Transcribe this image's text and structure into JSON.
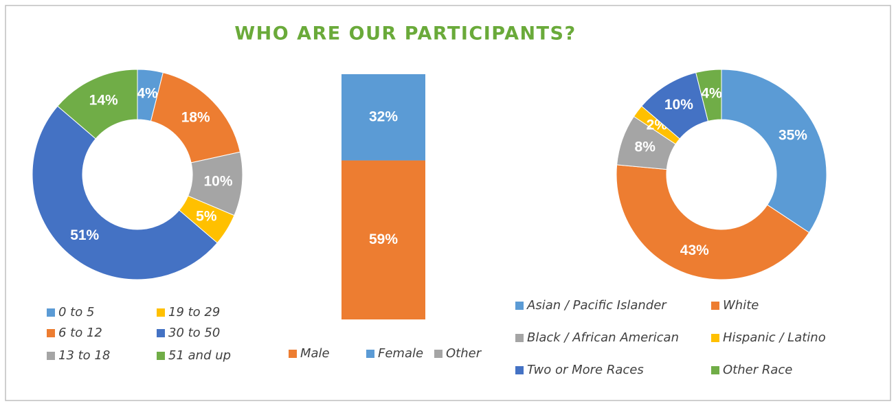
{
  "title": "WHO ARE OUR PARTICIPANTS?",
  "chart_data": [
    {
      "type": "donut",
      "categories": [
        "0 to 5",
        "6 to 12",
        "13 to 18",
        "19 to 29",
        "30 to 50",
        "51 and up"
      ],
      "values": [
        4,
        18,
        10,
        5,
        51,
        14
      ],
      "value_labels": [
        "4%",
        "18%",
        "10%",
        "5%",
        "51%",
        "14%"
      ],
      "colors": [
        "#5b9bd5",
        "#ed7d31",
        "#a5a5a5",
        "#ffc000",
        "#4472c4",
        "#70ad47"
      ]
    },
    {
      "type": "stacked_bar",
      "categories": [
        "Participants"
      ],
      "series": [
        {
          "name": "Male",
          "color": "#ed7d31",
          "values": [
            59
          ],
          "value_labels": [
            "59%"
          ]
        },
        {
          "name": "Female",
          "color": "#5b9bd5",
          "values": [
            32
          ],
          "value_labels": [
            "32%"
          ]
        },
        {
          "name": "Other",
          "color": "#a5a5a5",
          "values": [
            null
          ]
        }
      ]
    },
    {
      "type": "donut",
      "categories": [
        "Asian / Pacific Islander",
        "White",
        "Black / African American",
        "Hispanic / Latino",
        "Two or More Races",
        "Other Race"
      ],
      "values": [
        35,
        43,
        8,
        2,
        10,
        4
      ],
      "value_labels": [
        "35%",
        "43%",
        "8%",
        "2%",
        "10%",
        "4%"
      ],
      "colors": [
        "#5b9bd5",
        "#ed7d31",
        "#a5a5a5",
        "#ffc000",
        "#4472c4",
        "#70ad47"
      ]
    }
  ]
}
